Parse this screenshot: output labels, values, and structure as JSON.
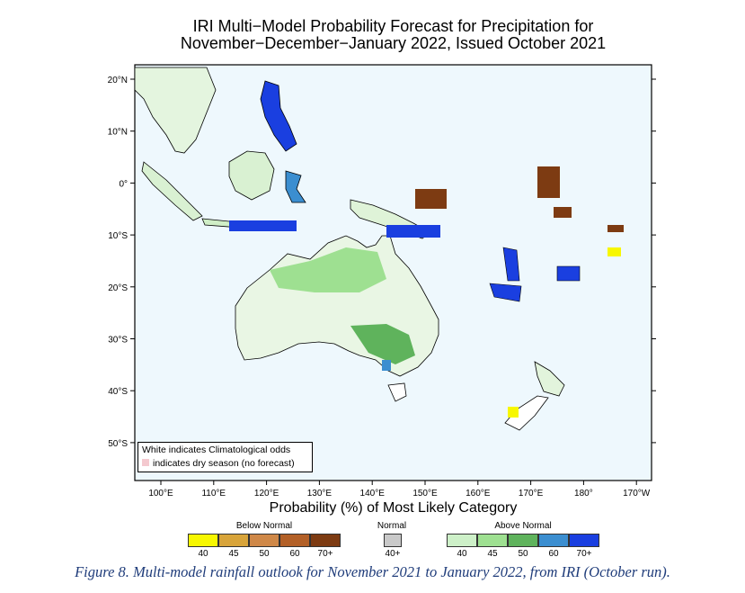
{
  "title": {
    "line1": "IRI Multi−Model Probability Forecast for Precipitation for",
    "line2": "November−December−January 2022, Issued October 2021"
  },
  "map": {
    "background_color": "#eef8fd",
    "land_outline_color": "#000000",
    "lon_labels": [
      "100°E",
      "110°E",
      "120°E",
      "130°E",
      "140°E",
      "150°E",
      "160°E",
      "170°E",
      "180°",
      "170°W"
    ],
    "lat_labels": [
      "20°N",
      "10°N",
      "0°",
      "10°S",
      "20°S",
      "30°S",
      "40°S",
      "50°S"
    ],
    "legend_note": {
      "line1": "White indicates Climatological odds",
      "line2": "indicates dry season (no forecast)"
    }
  },
  "legend": {
    "title": "Probability (%) of Most Likely Category",
    "below_normal": {
      "label": "Below Normal",
      "bins": [
        "40",
        "45",
        "50",
        "60",
        "70+"
      ],
      "colors": [
        "#f7f700",
        "#d8a43a",
        "#cf8848",
        "#b36027",
        "#7d3b12"
      ]
    },
    "normal": {
      "label": "Normal",
      "bins": [
        "40+"
      ],
      "colors": [
        "#c9c9c9"
      ]
    },
    "above_normal": {
      "label": "Above Normal",
      "bins": [
        "40",
        "45",
        "50",
        "60",
        "70+"
      ],
      "colors": [
        "#cdf0c8",
        "#9ee091",
        "#5fb35c",
        "#3b8ed0",
        "#1a3fe0"
      ]
    }
  },
  "caption": "Figure 8. Multi-model rainfall outlook for November 2021 to January 2022, from IRI (October run)."
}
